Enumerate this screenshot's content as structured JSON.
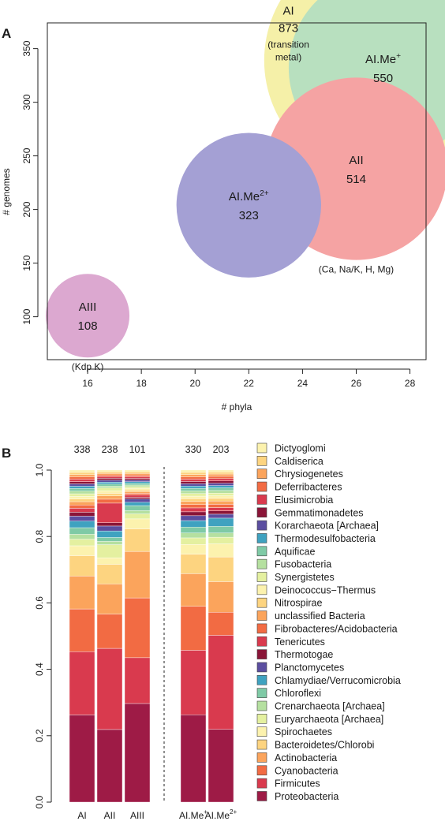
{
  "chart_data": [
    {
      "panel": "A",
      "type": "scatter",
      "xlabel": "# phyla",
      "ylabel": "# genomes",
      "xlim": [
        14.5,
        28.6
      ],
      "ylim": [
        60,
        374
      ],
      "xticks": [
        16,
        18,
        20,
        22,
        24,
        26,
        28
      ],
      "yticks": [
        100,
        150,
        200,
        250,
        300,
        350
      ],
      "points": [
        {
          "label": "AI",
          "x": 27,
          "y": 339,
          "size": 873,
          "color": "#f5f0a8",
          "caption": [
            "AI",
            "873",
            "(transition",
            "metal)"
          ]
        },
        {
          "label": "AI.Me",
          "sup": "+",
          "x": 27,
          "y": 332,
          "size": 550,
          "color": "#b8e0bf",
          "count": "550"
        },
        {
          "label": "AII",
          "x": 26,
          "y": 238,
          "size": 514,
          "color": "#f5a3a3",
          "count": "514",
          "note": "(Ca, Na/K, H, Mg)"
        },
        {
          "label": "AI.Me",
          "sup": "2+",
          "x": 22,
          "y": 204,
          "size": 323,
          "color": "#a4a0d4",
          "count": "323"
        },
        {
          "label": "AIII",
          "x": 16,
          "y": 101,
          "size": 108,
          "color": "#dca8d0",
          "count": "108",
          "note": "(Kdp K)"
        }
      ]
    },
    {
      "panel": "B",
      "type": "bar",
      "stacked": true,
      "ylim": [
        0,
        1
      ],
      "yticks": [
        "0.0",
        "0.2",
        "0.4",
        "0.6",
        "0.8",
        "1.0"
      ],
      "categories": [
        {
          "label": "AI",
          "sup": "",
          "count": "338"
        },
        {
          "label": "AII",
          "sup": "",
          "count": "238"
        },
        {
          "label": "AIII",
          "sup": "",
          "count": "101"
        },
        {
          "label": "AI.Me",
          "sup": "+",
          "count": "330"
        },
        {
          "label": "AI.Me",
          "sup": "2+",
          "count": "203"
        }
      ],
      "separator_after": 2,
      "series": [
        {
          "name": "Proteobacteria",
          "color": "#9e1b46",
          "values": [
            0.265,
            0.222,
            0.297,
            0.268,
            0.221
          ]
        },
        {
          "name": "Firmicutes",
          "color": "#d93a4e",
          "values": [
            0.192,
            0.248,
            0.138,
            0.198,
            0.286
          ]
        },
        {
          "name": "Cyanobacteria",
          "color": "#f26b43",
          "values": [
            0.13,
            0.105,
            0.18,
            0.135,
            0.07
          ]
        },
        {
          "name": "Actinobacteria",
          "color": "#fba45c",
          "values": [
            0.1,
            0.092,
            0.14,
            0.1,
            0.093
          ]
        },
        {
          "name": "Bacteroidetes/Chlorobi",
          "color": "#fdd480",
          "values": [
            0.062,
            0.06,
            0.068,
            0.06,
            0.075
          ]
        },
        {
          "name": "Spirochaetes",
          "color": "#fcf2ae",
          "values": [
            0.03,
            0.02,
            0.03,
            0.03,
            0.04
          ]
        },
        {
          "name": "Euryarchaeota [Archaea]",
          "color": "#e4f0a0",
          "values": [
            0.02,
            0.04,
            0.015,
            0.02,
            0.02
          ]
        },
        {
          "name": "Crenarchaeota [Archaea]",
          "color": "#b5e0a0",
          "values": [
            0.015,
            0.01,
            0.01,
            0.015,
            0.013
          ]
        },
        {
          "name": "Chloroflexi",
          "color": "#7fcaa6",
          "values": [
            0.02,
            0.012,
            0.015,
            0.018,
            0.02
          ]
        },
        {
          "name": "Chlamydiae/Verrucomicrobia",
          "color": "#3fa2c0",
          "values": [
            0.02,
            0.02,
            0.01,
            0.02,
            0.025
          ]
        },
        {
          "name": "Planctomycetes",
          "color": "#5b4ea0",
          "values": [
            0.015,
            0.015,
            0.01,
            0.015,
            0.012
          ]
        },
        {
          "name": "Thermotogae",
          "color": "#8a1538",
          "values": [
            0.012,
            0.01,
            0.005,
            0.012,
            0.01
          ]
        },
        {
          "name": "Tenericutes",
          "color": "#d93a4e",
          "values": [
            0.012,
            0.06,
            0.007,
            0.012,
            0.01
          ]
        },
        {
          "name": "Fibrobacteres/Acidobacteria",
          "color": "#f26b43",
          "values": [
            0.01,
            0.012,
            0.005,
            0.01,
            0.01
          ]
        },
        {
          "name": "unclassified Bacteria",
          "color": "#fba45c",
          "values": [
            0.01,
            0.01,
            0.005,
            0.01,
            0.01
          ]
        },
        {
          "name": "Nitrospirae",
          "color": "#fdd480",
          "values": [
            0.008,
            0.008,
            0.005,
            0.008,
            0.008
          ]
        },
        {
          "name": "Deinococcus-Thermus",
          "color": "#fcf2ae",
          "values": [
            0.008,
            0.008,
            0.005,
            0.008,
            0.008
          ]
        },
        {
          "name": "Synergistetes",
          "color": "#e4f0a0",
          "values": [
            0.008,
            0.008,
            0.005,
            0.008,
            0.008
          ]
        },
        {
          "name": "Fusobacteria",
          "color": "#b5e0a0",
          "values": [
            0.008,
            0.006,
            0.005,
            0.008,
            0.008
          ]
        },
        {
          "name": "Aquificae",
          "color": "#7fcaa6",
          "values": [
            0.008,
            0.006,
            0.005,
            0.008,
            0.008
          ]
        },
        {
          "name": "Thermodesulfobacteria",
          "color": "#3fa2c0",
          "values": [
            0.007,
            0.006,
            0.005,
            0.007,
            0.007
          ]
        },
        {
          "name": "Korarchaeota [Archaea]",
          "color": "#5b4ea0",
          "values": [
            0.007,
            0.006,
            0.005,
            0.007,
            0.007
          ]
        },
        {
          "name": "Gemmatimonadetes",
          "color": "#8a1538",
          "values": [
            0.007,
            0.006,
            0.005,
            0.007,
            0.007
          ]
        },
        {
          "name": "Elusimicrobia",
          "color": "#d93a4e",
          "values": [
            0.007,
            0.005,
            0.005,
            0.007,
            0.007
          ]
        },
        {
          "name": "Deferribacteres",
          "color": "#f26b43",
          "values": [
            0.007,
            0.005,
            0.005,
            0.007,
            0.007
          ]
        },
        {
          "name": "Chrysiogenetes",
          "color": "#fba45c",
          "values": [
            0.007,
            0.005,
            0.005,
            0.007,
            0.007
          ]
        },
        {
          "name": "Caldiserica",
          "color": "#fdd480",
          "values": [
            0.007,
            0.005,
            0.005,
            0.007,
            0.006
          ]
        },
        {
          "name": "Dictyoglomi",
          "color": "#fcf2ae",
          "values": [
            0.007,
            0.005,
            0.005,
            0.007,
            0.006
          ]
        }
      ]
    }
  ]
}
